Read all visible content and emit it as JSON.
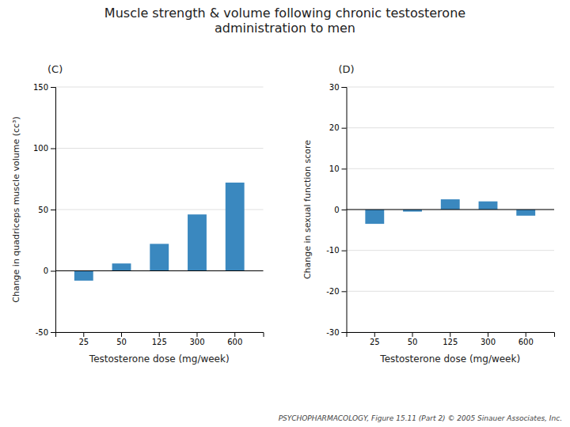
{
  "chart_data": [
    {
      "type": "bar",
      "title": "Muscle strength & volume following chronic testosterone\nadministration to men",
      "subtitle": "(C)",
      "annotations": [
        "PSYCHOPHARMACOLOGY, Figure 15.11 (Part 2)  © 2005 Sinauer Associates, Inc."
      ],
      "categories": [
        "25",
        "50",
        "125",
        "300",
        "600"
      ],
      "values": [
        -8,
        6,
        22,
        46,
        72
      ],
      "color": "#3a88bf",
      "xlabel": "Testosterone dose (mg/week)",
      "ylabel": "Change in quadriceps muscle volume (cc³)",
      "ylim": [
        -50,
        150
      ],
      "yticks": [
        -50,
        0,
        50,
        100,
        150
      ],
      "grid": true
    },
    {
      "type": "bar",
      "subtitle": "(D)",
      "categories": [
        "25",
        "50",
        "125",
        "300",
        "600"
      ],
      "values": [
        -3.5,
        -0.5,
        2.5,
        2.0,
        -1.5
      ],
      "color": "#3a88bf",
      "xlabel": "Testosterone dose (mg/week)",
      "ylabel": "Change in sexual function score",
      "ylim": [
        -30,
        30
      ],
      "yticks": [
        -30,
        -20,
        -10,
        0,
        10,
        20,
        30
      ],
      "grid": true
    }
  ]
}
